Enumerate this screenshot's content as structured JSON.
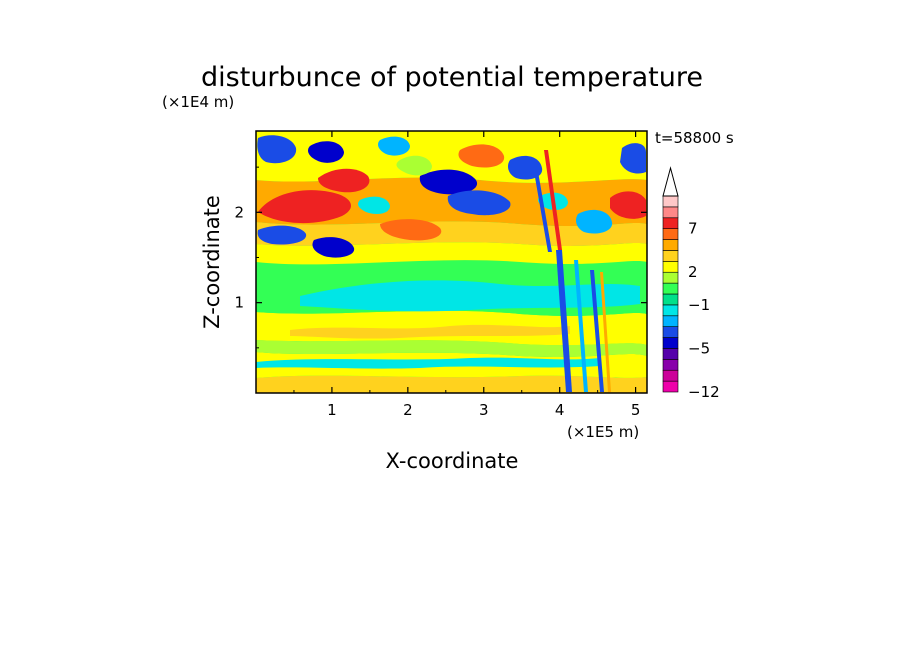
{
  "chart_data": {
    "type": "heatmap",
    "title": "disturbunce of potential temperature",
    "xlabel": "X-coordinate",
    "ylabel": "Z-coordinate",
    "x_unit": "(×1E5 m)",
    "y_unit": "(×1E4 m)",
    "time_label": "t=58800 s",
    "xlim": [
      0,
      5.15
    ],
    "ylim": [
      0,
      2.9
    ],
    "x_ticks": [
      "1",
      "2",
      "3",
      "4",
      "5"
    ],
    "y_ticks": [
      "1",
      "2"
    ],
    "colorbar": {
      "levels": [
        -12,
        -10,
        -8,
        -6,
        -5,
        -4,
        -3,
        -2,
        -1,
        0,
        1,
        2,
        3,
        4,
        5,
        7,
        9,
        11
      ],
      "labels": [
        "−12",
        "−5",
        "−1",
        "2",
        "7"
      ],
      "colors": [
        "#ee00aa",
        "#cc0099",
        "#8800aa",
        "#5500aa",
        "#0000cc",
        "#1a4ce6",
        "#00b4ff",
        "#00e6e6",
        "#00e08a",
        "#33ff55",
        "#aaff33",
        "#ffff00",
        "#ffd21e",
        "#ffaa00",
        "#ff6a14",
        "#ee2222",
        "#ff8888",
        "#ffc8c8"
      ],
      "extend": "max"
    },
    "grid": false
  }
}
